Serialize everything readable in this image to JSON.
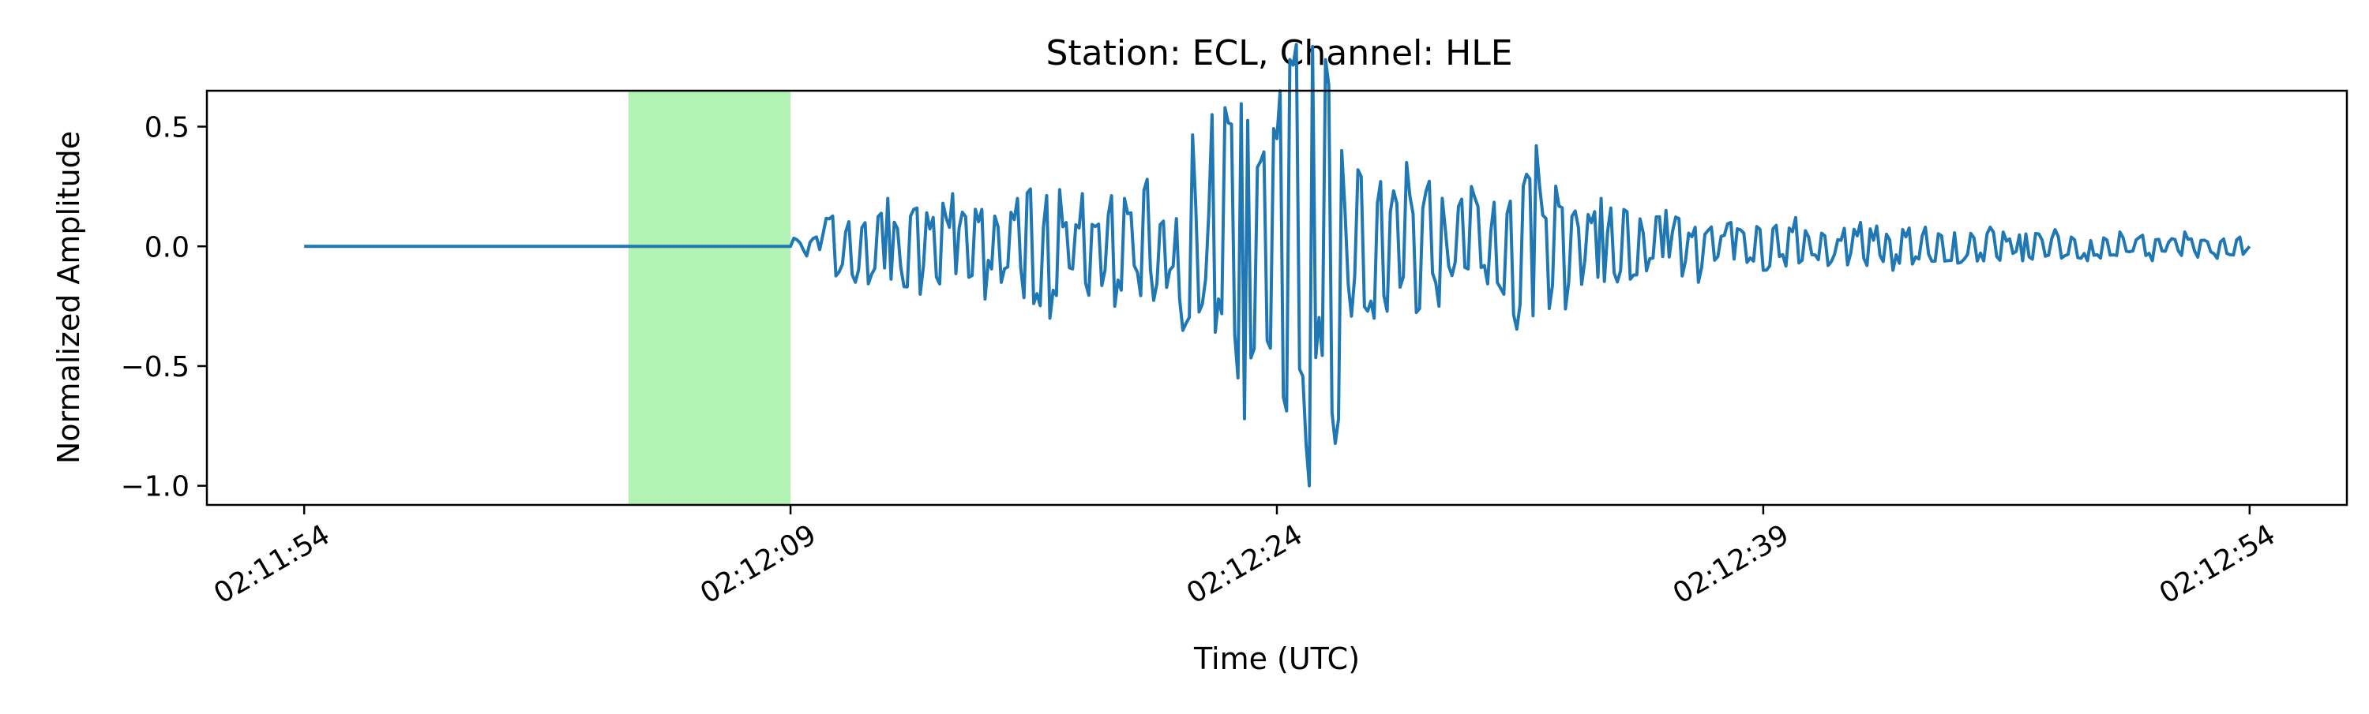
{
  "chart_data": {
    "type": "line",
    "title": "Station: ECL, Channel: HLE",
    "xlabel": "Time (UTC)",
    "ylabel": "Normalized Amplitude",
    "x_unit": "seconds",
    "x_range": [
      "02:11:54",
      "02:12:54"
    ],
    "xlim": [
      "02:11:51",
      "02:12:57"
    ],
    "ylim": [
      -1.08,
      0.65
    ],
    "grid": false,
    "x_ticks": [
      {
        "value": "02:11:54",
        "label": "02:11:54"
      },
      {
        "value": "02:12:09",
        "label": "02:12:09"
      },
      {
        "value": "02:12:24",
        "label": "02:12:24"
      },
      {
        "value": "02:12:39",
        "label": "02:12:39"
      },
      {
        "value": "02:12:54",
        "label": "02:12:54"
      }
    ],
    "y_ticks": [
      {
        "value": 0.5,
        "label": "0.5"
      },
      {
        "value": 0.0,
        "label": "0.0"
      },
      {
        "value": -0.5,
        "label": "−0.5"
      },
      {
        "value": -1.0,
        "label": "−1.0"
      }
    ],
    "highlight_span": {
      "start": "02:12:04",
      "end": "02:12:09",
      "color": "#b2f2b2"
    },
    "series": [
      {
        "color": "#1f77b4",
        "points": [
          [
            "02:11:54",
            0.0
          ],
          [
            "02:12:09",
            0.0
          ],
          [
            "02:12:10",
            0.05
          ],
          [
            "02:12:11",
            -0.15
          ],
          [
            "02:12:12",
            0.2
          ],
          [
            "02:12:13",
            -0.2
          ],
          [
            "02:12:14",
            0.22
          ],
          [
            "02:12:15",
            -0.22
          ],
          [
            "02:12:16",
            0.2
          ],
          [
            "02:12:17",
            -0.3
          ],
          [
            "02:12:18",
            0.22
          ],
          [
            "02:12:19",
            -0.25
          ],
          [
            "02:12:20",
            0.28
          ],
          [
            "02:12:21",
            -0.22
          ],
          [
            "02:12:22",
            0.55
          ],
          [
            "02:12:23",
            -0.72
          ],
          [
            "02:12:24",
            0.45
          ],
          [
            "02:12:25",
            -1.0
          ],
          [
            "02:12:26",
            0.4
          ],
          [
            "02:12:27",
            -0.3
          ],
          [
            "02:12:28",
            0.35
          ],
          [
            "02:12:29",
            -0.25
          ],
          [
            "02:12:30",
            0.25
          ],
          [
            "02:12:31",
            -0.2
          ],
          [
            "02:12:32",
            0.42
          ],
          [
            "02:12:33",
            -0.15
          ],
          [
            "02:12:34",
            0.2
          ],
          [
            "02:12:35",
            -0.12
          ],
          [
            "02:12:36",
            0.15
          ],
          [
            "02:12:37",
            -0.15
          ],
          [
            "02:12:38",
            0.1
          ],
          [
            "02:12:39",
            -0.1
          ],
          [
            "02:12:40",
            0.12
          ],
          [
            "02:12:41",
            -0.08
          ],
          [
            "02:12:42",
            0.1
          ],
          [
            "02:12:43",
            -0.1
          ],
          [
            "02:12:44",
            0.08
          ],
          [
            "02:12:45",
            -0.07
          ],
          [
            "02:12:46",
            0.08
          ],
          [
            "02:12:47",
            -0.06
          ],
          [
            "02:12:48",
            0.07
          ],
          [
            "02:12:49",
            -0.06
          ],
          [
            "02:12:50",
            0.06
          ],
          [
            "02:12:51",
            -0.06
          ],
          [
            "02:12:52",
            0.06
          ],
          [
            "02:12:53",
            -0.05
          ],
          [
            "02:12:54",
            0.0
          ]
        ]
      }
    ]
  }
}
